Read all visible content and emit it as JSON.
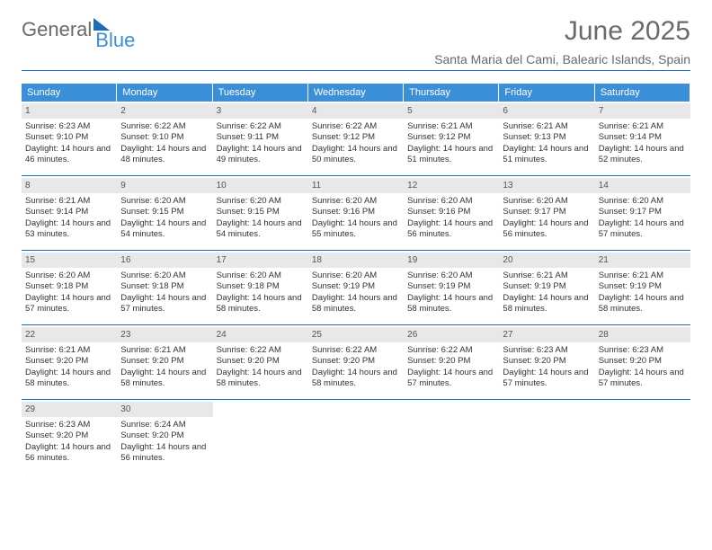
{
  "brand": {
    "part1": "General",
    "part2": "Blue"
  },
  "title": "June 2025",
  "location": "Santa Maria del Cami, Balearic Islands, Spain",
  "days_of_week": [
    "Sunday",
    "Monday",
    "Tuesday",
    "Wednesday",
    "Thursday",
    "Friday",
    "Saturday"
  ],
  "colors": {
    "accent": "#3a8fd8",
    "rule": "#1e6bb8",
    "dayhdr_bg": "#e8e8e8",
    "text": "#333333",
    "muted": "#6a6a6a"
  },
  "fonts": {
    "title_pt": 30,
    "location_pt": 14,
    "dow_pt": 11,
    "cell_pt": 9.5
  },
  "days": [
    {
      "n": 1,
      "sunrise": "6:23 AM",
      "sunset": "9:10 PM",
      "daylight": "14 hours and 46 minutes."
    },
    {
      "n": 2,
      "sunrise": "6:22 AM",
      "sunset": "9:10 PM",
      "daylight": "14 hours and 48 minutes."
    },
    {
      "n": 3,
      "sunrise": "6:22 AM",
      "sunset": "9:11 PM",
      "daylight": "14 hours and 49 minutes."
    },
    {
      "n": 4,
      "sunrise": "6:22 AM",
      "sunset": "9:12 PM",
      "daylight": "14 hours and 50 minutes."
    },
    {
      "n": 5,
      "sunrise": "6:21 AM",
      "sunset": "9:12 PM",
      "daylight": "14 hours and 51 minutes."
    },
    {
      "n": 6,
      "sunrise": "6:21 AM",
      "sunset": "9:13 PM",
      "daylight": "14 hours and 51 minutes."
    },
    {
      "n": 7,
      "sunrise": "6:21 AM",
      "sunset": "9:14 PM",
      "daylight": "14 hours and 52 minutes."
    },
    {
      "n": 8,
      "sunrise": "6:21 AM",
      "sunset": "9:14 PM",
      "daylight": "14 hours and 53 minutes."
    },
    {
      "n": 9,
      "sunrise": "6:20 AM",
      "sunset": "9:15 PM",
      "daylight": "14 hours and 54 minutes."
    },
    {
      "n": 10,
      "sunrise": "6:20 AM",
      "sunset": "9:15 PM",
      "daylight": "14 hours and 54 minutes."
    },
    {
      "n": 11,
      "sunrise": "6:20 AM",
      "sunset": "9:16 PM",
      "daylight": "14 hours and 55 minutes."
    },
    {
      "n": 12,
      "sunrise": "6:20 AM",
      "sunset": "9:16 PM",
      "daylight": "14 hours and 56 minutes."
    },
    {
      "n": 13,
      "sunrise": "6:20 AM",
      "sunset": "9:17 PM",
      "daylight": "14 hours and 56 minutes."
    },
    {
      "n": 14,
      "sunrise": "6:20 AM",
      "sunset": "9:17 PM",
      "daylight": "14 hours and 57 minutes."
    },
    {
      "n": 15,
      "sunrise": "6:20 AM",
      "sunset": "9:18 PM",
      "daylight": "14 hours and 57 minutes."
    },
    {
      "n": 16,
      "sunrise": "6:20 AM",
      "sunset": "9:18 PM",
      "daylight": "14 hours and 57 minutes."
    },
    {
      "n": 17,
      "sunrise": "6:20 AM",
      "sunset": "9:18 PM",
      "daylight": "14 hours and 58 minutes."
    },
    {
      "n": 18,
      "sunrise": "6:20 AM",
      "sunset": "9:19 PM",
      "daylight": "14 hours and 58 minutes."
    },
    {
      "n": 19,
      "sunrise": "6:20 AM",
      "sunset": "9:19 PM",
      "daylight": "14 hours and 58 minutes."
    },
    {
      "n": 20,
      "sunrise": "6:21 AM",
      "sunset": "9:19 PM",
      "daylight": "14 hours and 58 minutes."
    },
    {
      "n": 21,
      "sunrise": "6:21 AM",
      "sunset": "9:19 PM",
      "daylight": "14 hours and 58 minutes."
    },
    {
      "n": 22,
      "sunrise": "6:21 AM",
      "sunset": "9:20 PM",
      "daylight": "14 hours and 58 minutes."
    },
    {
      "n": 23,
      "sunrise": "6:21 AM",
      "sunset": "9:20 PM",
      "daylight": "14 hours and 58 minutes."
    },
    {
      "n": 24,
      "sunrise": "6:22 AM",
      "sunset": "9:20 PM",
      "daylight": "14 hours and 58 minutes."
    },
    {
      "n": 25,
      "sunrise": "6:22 AM",
      "sunset": "9:20 PM",
      "daylight": "14 hours and 58 minutes."
    },
    {
      "n": 26,
      "sunrise": "6:22 AM",
      "sunset": "9:20 PM",
      "daylight": "14 hours and 57 minutes."
    },
    {
      "n": 27,
      "sunrise": "6:23 AM",
      "sunset": "9:20 PM",
      "daylight": "14 hours and 57 minutes."
    },
    {
      "n": 28,
      "sunrise": "6:23 AM",
      "sunset": "9:20 PM",
      "daylight": "14 hours and 57 minutes."
    },
    {
      "n": 29,
      "sunrise": "6:23 AM",
      "sunset": "9:20 PM",
      "daylight": "14 hours and 56 minutes."
    },
    {
      "n": 30,
      "sunrise": "6:24 AM",
      "sunset": "9:20 PM",
      "daylight": "14 hours and 56 minutes."
    }
  ],
  "labels": {
    "sunrise": "Sunrise: ",
    "sunset": "Sunset: ",
    "daylight": "Daylight: "
  }
}
